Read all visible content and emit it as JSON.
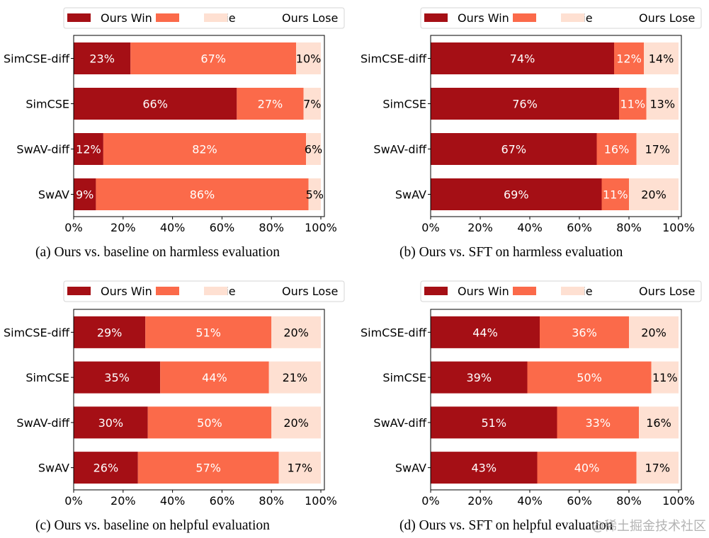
{
  "colors": {
    "win": "#a50f15",
    "tie": "#fb6a4a",
    "lose": "#fee0d2"
  },
  "legend": [
    "Ours Win",
    "Tie",
    "Ours Lose"
  ],
  "watermark": "@稀土掘金技术社区",
  "chart_data": [
    {
      "type": "bar",
      "orientation": "horizontal-stacked",
      "title": "(a)  Ours vs. baseline on harmless evaluation",
      "categories": [
        "SimCSE-diff",
        "SimCSE",
        "SwAV-diff",
        "SwAV"
      ],
      "series": [
        {
          "name": "Ours Win",
          "values": [
            23,
            66,
            12,
            9
          ]
        },
        {
          "name": "Tie",
          "values": [
            67,
            27,
            82,
            86
          ]
        },
        {
          "name": "Ours Lose",
          "values": [
            10,
            7,
            6,
            5
          ]
        }
      ],
      "xticks": [
        "0%",
        "20%",
        "40%",
        "60%",
        "80%",
        "100%"
      ],
      "xlim": [
        0,
        100
      ],
      "legend_position": "top",
      "grid": false
    },
    {
      "type": "bar",
      "orientation": "horizontal-stacked",
      "title": "(b)  Ours vs. SFT on harmless evaluation",
      "categories": [
        "SimCSE-diff",
        "SimCSE",
        "SwAV-diff",
        "SwAV"
      ],
      "series": [
        {
          "name": "Ours Win",
          "values": [
            74,
            76,
            67,
            69
          ]
        },
        {
          "name": "Tie",
          "values": [
            12,
            11,
            16,
            11
          ]
        },
        {
          "name": "Ours Lose",
          "values": [
            14,
            13,
            17,
            20
          ]
        }
      ],
      "xticks": [
        "0%",
        "20%",
        "40%",
        "60%",
        "80%",
        "100%"
      ],
      "xlim": [
        0,
        100
      ],
      "legend_position": "top",
      "grid": false
    },
    {
      "type": "bar",
      "orientation": "horizontal-stacked",
      "title": "(c)  Ours vs. baseline on helpful evaluation",
      "categories": [
        "SimCSE-diff",
        "SimCSE",
        "SwAV-diff",
        "SwAV"
      ],
      "series": [
        {
          "name": "Ours Win",
          "values": [
            29,
            35,
            30,
            26
          ]
        },
        {
          "name": "Tie",
          "values": [
            51,
            44,
            50,
            57
          ]
        },
        {
          "name": "Ours Lose",
          "values": [
            20,
            21,
            20,
            17
          ]
        }
      ],
      "xticks": [
        "0%",
        "20%",
        "40%",
        "60%",
        "80%",
        "100%"
      ],
      "xlim": [
        0,
        100
      ],
      "legend_position": "top",
      "grid": false
    },
    {
      "type": "bar",
      "orientation": "horizontal-stacked",
      "title": "(d)  Ours vs. SFT on helpful evaluation",
      "categories": [
        "SimCSE-diff",
        "SimCSE",
        "SwAV-diff",
        "SwAV"
      ],
      "series": [
        {
          "name": "Ours Win",
          "values": [
            44,
            39,
            51,
            43
          ]
        },
        {
          "name": "Tie",
          "values": [
            36,
            50,
            33,
            40
          ]
        },
        {
          "name": "Ours Lose",
          "values": [
            20,
            11,
            16,
            17
          ]
        }
      ],
      "xticks": [
        "0%",
        "20%",
        "40%",
        "60%",
        "80%",
        "100%"
      ],
      "xlim": [
        0,
        100
      ],
      "legend_position": "top",
      "grid": false
    }
  ]
}
